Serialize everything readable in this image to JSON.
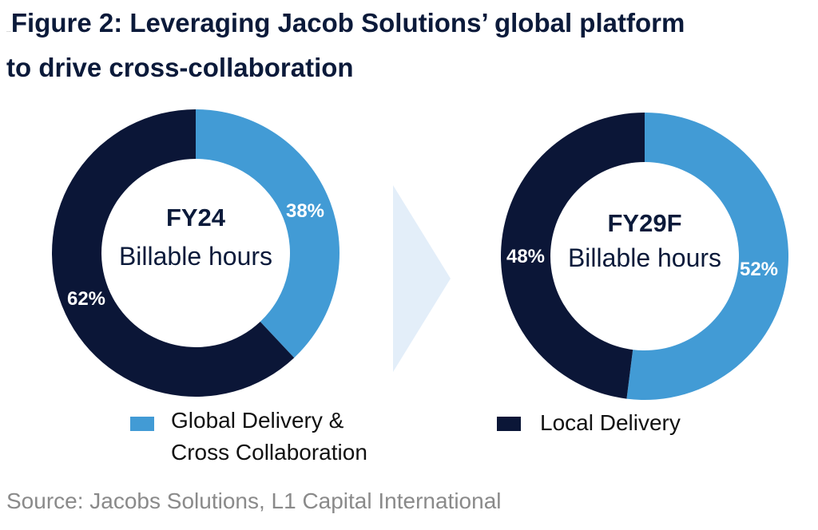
{
  "title": {
    "marker": "...",
    "line1": "Figure 2: Leveraging Jacob Solutions’ global platform",
    "line2": "to drive cross-collaboration"
  },
  "colors": {
    "global": "#429bd5",
    "local": "#0b1637",
    "arrow": "#e3eef9"
  },
  "chart_data": [
    {
      "type": "pie",
      "title": "FY24",
      "subtitle": "Billable hours",
      "slices": [
        {
          "label": "Global Delivery & Cross Collaboration",
          "value": 38,
          "display": "38%",
          "color": "#429bd5"
        },
        {
          "label": "Local Delivery",
          "value": 62,
          "display": "62%",
          "color": "#0b1637"
        }
      ]
    },
    {
      "type": "pie",
      "title": "FY29F",
      "subtitle": "Billable hours",
      "slices": [
        {
          "label": "Global Delivery & Cross Collaboration",
          "value": 52,
          "display": "52%",
          "color": "#429bd5"
        },
        {
          "label": "Local Delivery",
          "value": 48,
          "display": "48%",
          "color": "#0b1637"
        }
      ]
    }
  ],
  "legend": [
    {
      "line1": "Global Delivery &",
      "line2": "Cross Collaboration",
      "color": "#429bd5"
    },
    {
      "line1": "Local Delivery",
      "color": "#0b1637"
    }
  ],
  "source": "Source: Jacobs Solutions, L1 Capital International"
}
